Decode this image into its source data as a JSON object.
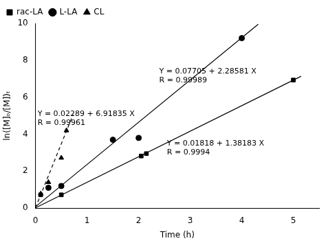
{
  "chart_data": {
    "type": "scatter",
    "x_label": "Time (h)",
    "y_label": "ln([M]ₒ/[M])ₜ",
    "xlim": [
      0,
      5.5
    ],
    "ylim": [
      0,
      10
    ],
    "xticks": [
      0,
      1,
      2,
      3,
      4,
      5
    ],
    "yticks": [
      0,
      2,
      4,
      6,
      8,
      10
    ],
    "grid": false,
    "legend": "upper left",
    "color": "#000000",
    "series": [
      {
        "name": "rac-LA",
        "marker": "square",
        "x": [
          0.1,
          0.5,
          2.05,
          2.15,
          5.0
        ],
        "values": [
          0.72,
          0.72,
          2.82,
          2.95,
          6.93
        ],
        "fit": {
          "x": [
            0,
            5.15
          ],
          "values": [
            0.01818,
            7.1346245
          ],
          "line_style": "solid"
        }
      },
      {
        "name": "L-LA",
        "marker": "circle",
        "x": [
          0.25,
          0.5,
          1.5,
          2.0,
          4.0
        ],
        "values": [
          1.1,
          1.2,
          3.7,
          3.8,
          9.2
        ],
        "fit": {
          "x": [
            0,
            4.32
          ],
          "values": [
            0.07705,
            9.9517492
          ],
          "line_style": "solid"
        }
      },
      {
        "name": "CL",
        "marker": "triangle",
        "x": [
          0.1,
          0.25,
          0.5,
          0.6
        ],
        "values": [
          0.78,
          1.4,
          2.72,
          4.2
        ],
        "fit": {
          "x": [
            0,
            0.73
          ],
          "values": [
            0.02289,
            5.0732855
          ],
          "line_style": "dashed"
        }
      }
    ],
    "annotations": [
      {
        "text": "Y = 0.01818 + 1.38183 X\nR = 0.9994",
        "x": 2.55,
        "y": 3.7
      },
      {
        "text": "Y = 0.07705 + 2.28581 X\nR = 0.99989",
        "x": 2.4,
        "y": 7.6
      },
      {
        "text": "Y = 0.02289 + 6.91835 X\nR = 0.99961",
        "x": 0.04,
        "y": 5.3
      }
    ]
  }
}
